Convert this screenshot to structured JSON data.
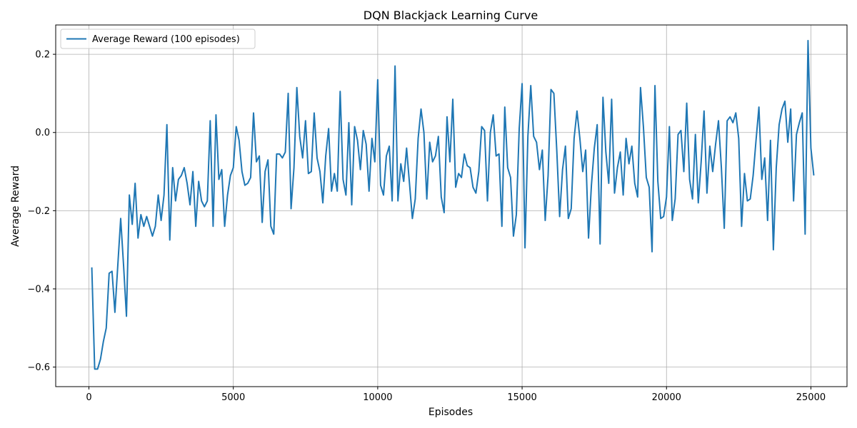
{
  "chart_data": {
    "type": "line",
    "title": "DQN Blackjack Learning Curve",
    "xlabel": "Episodes",
    "ylabel": "Average Reward",
    "xlim": [
      -1150,
      26250
    ],
    "ylim": [
      -0.65,
      0.275
    ],
    "xticks": [
      0,
      5000,
      10000,
      15000,
      20000,
      25000
    ],
    "yticks": [
      -0.6,
      -0.4,
      -0.2,
      0.0,
      0.2
    ],
    "grid": true,
    "legend_position": "upper-left",
    "series": [
      {
        "name": "Average Reward (100 episodes)",
        "color": "#1f77b4",
        "x_start": 100,
        "x_step": 100,
        "values": [
          -0.345,
          -0.605,
          -0.605,
          -0.58,
          -0.535,
          -0.5,
          -0.36,
          -0.355,
          -0.46,
          -0.34,
          -0.22,
          -0.34,
          -0.47,
          -0.16,
          -0.235,
          -0.13,
          -0.27,
          -0.21,
          -0.24,
          -0.215,
          -0.24,
          -0.265,
          -0.24,
          -0.16,
          -0.225,
          -0.16,
          0.02,
          -0.275,
          -0.09,
          -0.175,
          -0.12,
          -0.11,
          -0.09,
          -0.13,
          -0.185,
          -0.1,
          -0.24,
          -0.125,
          -0.175,
          -0.19,
          -0.175,
          0.03,
          -0.24,
          0.045,
          -0.12,
          -0.095,
          -0.24,
          -0.16,
          -0.11,
          -0.09,
          0.015,
          -0.02,
          -0.1,
          -0.135,
          -0.13,
          -0.115,
          0.05,
          -0.075,
          -0.06,
          -0.23,
          -0.1,
          -0.07,
          -0.24,
          -0.26,
          -0.055,
          -0.055,
          -0.065,
          -0.05,
          0.1,
          -0.195,
          -0.09,
          0.115,
          -0.01,
          -0.065,
          0.03,
          -0.105,
          -0.1,
          0.05,
          -0.065,
          -0.1,
          -0.18,
          -0.06,
          0.01,
          -0.15,
          -0.105,
          -0.15,
          0.105,
          -0.12,
          -0.16,
          0.025,
          -0.185,
          0.015,
          -0.02,
          -0.095,
          0.005,
          -0.03,
          -0.15,
          -0.015,
          -0.075,
          0.135,
          -0.135,
          -0.16,
          -0.06,
          -0.035,
          -0.175,
          0.17,
          -0.175,
          -0.08,
          -0.125,
          -0.04,
          -0.13,
          -0.22,
          -0.17,
          -0.015,
          0.06,
          0.0,
          -0.17,
          -0.025,
          -0.075,
          -0.06,
          -0.01,
          -0.165,
          -0.205,
          0.04,
          -0.075,
          0.085,
          -0.14,
          -0.105,
          -0.115,
          -0.055,
          -0.085,
          -0.09,
          -0.14,
          -0.155,
          -0.1,
          0.015,
          0.005,
          -0.175,
          0.0,
          0.045,
          -0.06,
          -0.055,
          -0.24,
          0.065,
          -0.09,
          -0.115,
          -0.265,
          -0.21,
          0.01,
          0.125,
          -0.295,
          -0.01,
          0.12,
          -0.01,
          -0.025,
          -0.095,
          -0.045,
          -0.225,
          -0.11,
          0.11,
          0.1,
          -0.045,
          -0.215,
          -0.095,
          -0.035,
          -0.22,
          -0.195,
          -0.015,
          0.055,
          -0.015,
          -0.1,
          -0.045,
          -0.27,
          -0.135,
          -0.04,
          0.02,
          -0.285,
          0.09,
          -0.05,
          -0.13,
          0.085,
          -0.155,
          -0.09,
          -0.05,
          -0.16,
          -0.015,
          -0.08,
          -0.035,
          -0.13,
          -0.165,
          0.115,
          0.015,
          -0.115,
          -0.14,
          -0.305,
          0.12,
          -0.125,
          -0.22,
          -0.215,
          -0.165,
          0.015,
          -0.225,
          -0.17,
          -0.005,
          0.005,
          -0.1,
          0.075,
          -0.12,
          -0.17,
          -0.005,
          -0.18,
          -0.075,
          0.055,
          -0.155,
          -0.035,
          -0.1,
          -0.03,
          0.03,
          -0.09,
          -0.245,
          0.03,
          0.04,
          0.025,
          0.05,
          -0.015,
          -0.24,
          -0.105,
          -0.175,
          -0.17,
          -0.11,
          -0.02,
          0.065,
          -0.12,
          -0.065,
          -0.225,
          -0.02,
          -0.3,
          -0.09,
          0.02,
          0.06,
          0.08,
          -0.025,
          0.06,
          -0.175,
          -0.005,
          0.025,
          0.05,
          -0.26,
          0.235,
          -0.04,
          -0.11
        ]
      }
    ]
  }
}
